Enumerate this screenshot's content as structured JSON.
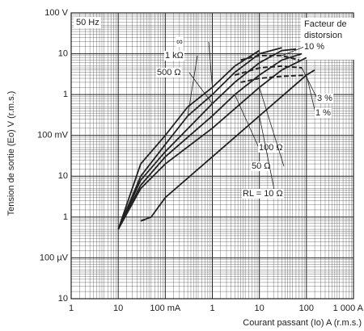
{
  "chart_data": {
    "type": "line",
    "xlabel": "Courant passant (Io) A (r.m.s.)",
    "ylabel": "Tension de sortie (Eo) V (r.m.s.)",
    "annotation": "50 Hz",
    "distortion_title": [
      "Facteur de",
      "distorsion"
    ],
    "log_x": true,
    "log_y": true,
    "grid": true,
    "minor_grid": true,
    "xlim": [
      0.001,
      1000
    ],
    "xticks": [
      {
        "value": 0.001,
        "label": "1"
      },
      {
        "value": 0.01,
        "label": "10"
      },
      {
        "value": 0.1,
        "label": "100 mA"
      },
      1,
      10,
      100,
      {
        "value": 1000,
        "label": "1 000 A"
      }
    ],
    "ylim": [
      1e-05,
      100
    ],
    "yticks": [
      {
        "value": 100,
        "label": "100 V"
      },
      10,
      1,
      {
        "value": 0.1,
        "label": "100 mV"
      },
      {
        "value": 0.01,
        "label": "10"
      },
      {
        "value": 0.001,
        "label": "1"
      },
      {
        "value": 0.0001,
        "label": "100 µV"
      },
      {
        "value": 1e-05,
        "label": "10"
      }
    ],
    "series": [
      {
        "name": "∞",
        "color": "#222",
        "style": "solid",
        "x": [
          0.01,
          0.03,
          0.1,
          0.3,
          1,
          3,
          10
        ],
        "values": [
          0.0005,
          0.02,
          0.1,
          0.5,
          1.5,
          5,
          12
        ]
      },
      {
        "name": "1 kΩ",
        "color": "#222",
        "style": "solid",
        "x": [
          0.01,
          0.03,
          0.1,
          0.3,
          1,
          3,
          10,
          30
        ],
        "values": [
          0.0005,
          0.01,
          0.06,
          0.3,
          1,
          3.5,
          10,
          14
        ]
      },
      {
        "name": "500 Ω",
        "color": "#222",
        "style": "solid",
        "x": [
          0.01,
          0.03,
          0.1,
          1,
          3,
          10,
          30,
          60
        ],
        "values": [
          0.0005,
          0.008,
          0.04,
          0.6,
          2,
          6,
          12,
          13
        ]
      },
      {
        "name": "100 Ω",
        "color": "#222",
        "style": "solid",
        "x": [
          0.01,
          0.03,
          0.1,
          1,
          3,
          10,
          30,
          80
        ],
        "values": [
          0.0005,
          0.006,
          0.03,
          0.3,
          1,
          3,
          7,
          10
        ]
      },
      {
        "name": "50 Ω",
        "color": "#222",
        "style": "solid",
        "x": [
          0.01,
          0.03,
          0.1,
          1,
          10,
          30,
          100
        ],
        "values": [
          0.0005,
          0.005,
          0.02,
          0.15,
          1.5,
          4,
          8
        ]
      },
      {
        "name": "RL = 10 Ω",
        "color": "#222",
        "style": "solid",
        "x": [
          0.03,
          0.05,
          0.1,
          1,
          10,
          100,
          150
        ],
        "values": [
          0.0008,
          0.001,
          0.003,
          0.03,
          0.3,
          3,
          4
        ]
      },
      {
        "name": "10 %",
        "color": "#222",
        "style": "dashed",
        "x": [
          4,
          10,
          30,
          70
        ],
        "values": [
          7,
          9,
          9,
          7
        ]
      },
      {
        "name": "3 %",
        "color": "#222",
        "style": "dashed",
        "x": [
          3,
          10,
          30,
          80
        ],
        "values": [
          3,
          4.5,
          5,
          4.5
        ]
      },
      {
        "name": "1 %",
        "color": "#222",
        "style": "dashed",
        "x": [
          4,
          10,
          30,
          100
        ],
        "values": [
          2,
          2.5,
          2.8,
          3
        ]
      }
    ]
  }
}
